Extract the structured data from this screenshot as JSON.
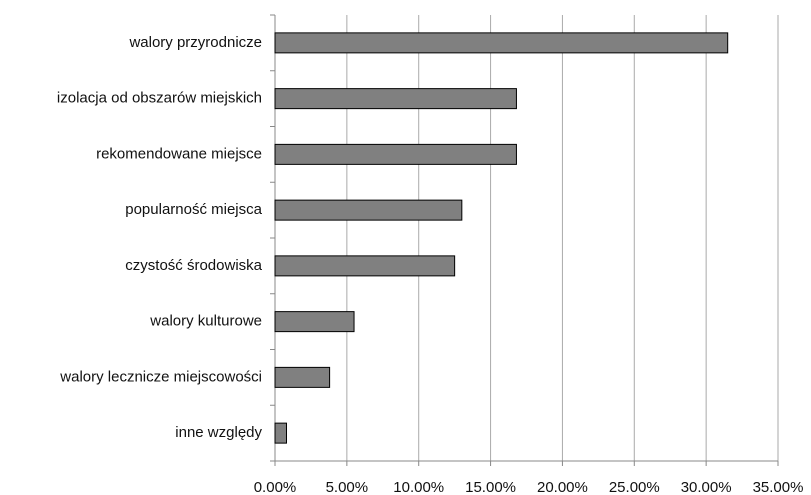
{
  "chart_data": {
    "type": "bar",
    "orientation": "horizontal",
    "categories": [
      "walory przyrodnicze",
      "izolacja od obszarów miejskich",
      "rekomendowane miejsce",
      "popularność miejsca",
      "czystość środowiska",
      "walory kulturowe",
      "walory lecznicze miejscowości",
      "inne względy"
    ],
    "values": [
      31.5,
      16.8,
      16.8,
      13.0,
      12.5,
      5.5,
      3.8,
      0.8
    ],
    "color": "#808080",
    "xlim": [
      0,
      35
    ],
    "xticks": [
      {
        "value": 0,
        "label": "0.00%"
      },
      {
        "value": 5,
        "label": "5.00%"
      },
      {
        "value": 10,
        "label": "10.00%"
      },
      {
        "value": 15,
        "label": "15.00%"
      },
      {
        "value": 20,
        "label": "20.00%"
      },
      {
        "value": 25,
        "label": "25.00%"
      },
      {
        "value": 30,
        "label": "30.00%"
      },
      {
        "value": 35,
        "label": "35.00%"
      }
    ],
    "grid": true
  }
}
